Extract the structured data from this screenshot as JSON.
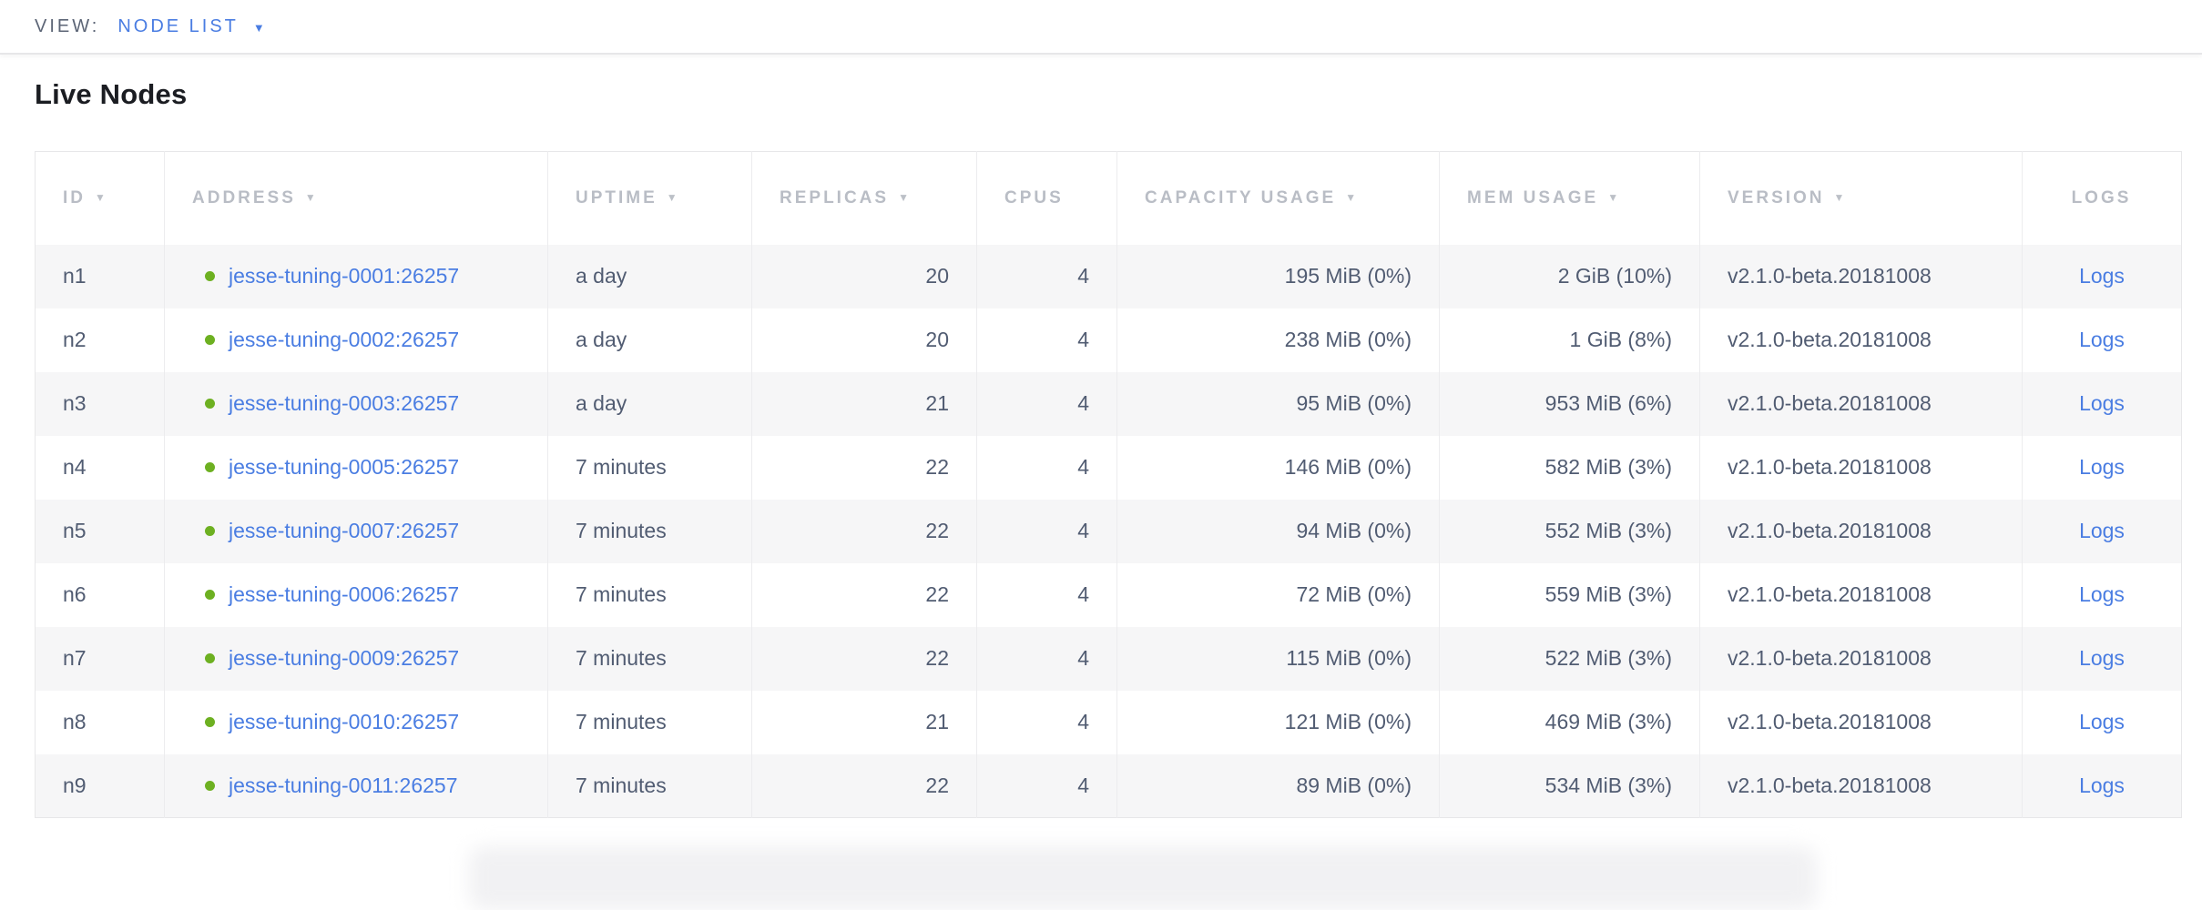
{
  "view_bar": {
    "label": "VIEW:",
    "selected_view": "NODE LIST"
  },
  "page": {
    "title": "Live Nodes"
  },
  "icons": {
    "dropdown_caret": "▼",
    "sort_arrow": "▼"
  },
  "colors": {
    "link_blue": "#4a7de2",
    "node_live_green": "#6db021",
    "header_gray": "#b9bdc5",
    "row_stripe": "#f6f6f7"
  },
  "table": {
    "columns": [
      {
        "key": "id",
        "label": "ID",
        "sortable": true,
        "data_align": "left"
      },
      {
        "key": "address",
        "label": "ADDRESS",
        "sortable": true,
        "data_align": "addr"
      },
      {
        "key": "uptime",
        "label": "UPTIME",
        "sortable": true,
        "data_align": "left"
      },
      {
        "key": "replicas",
        "label": "REPLICAS",
        "sortable": true,
        "data_align": "right"
      },
      {
        "key": "cpus",
        "label": "CPUS",
        "sortable": false,
        "data_align": "right"
      },
      {
        "key": "capacity",
        "label": "CAPACITY USAGE",
        "sortable": true,
        "data_align": "right"
      },
      {
        "key": "mem",
        "label": "MEM USAGE",
        "sortable": true,
        "data_align": "right"
      },
      {
        "key": "version",
        "label": "VERSION",
        "sortable": true,
        "data_align": "left"
      },
      {
        "key": "logs",
        "label": "LOGS",
        "sortable": false,
        "data_align": "center",
        "header_align": "center"
      }
    ],
    "rows": [
      {
        "id": "n1",
        "address": "jesse-tuning-0001:26257",
        "uptime": "a day",
        "replicas": "20",
        "cpus": "4",
        "capacity": "195 MiB (0%)",
        "mem": "2 GiB (10%)",
        "version": "v2.1.0-beta.20181008",
        "logs": "Logs"
      },
      {
        "id": "n2",
        "address": "jesse-tuning-0002:26257",
        "uptime": "a day",
        "replicas": "20",
        "cpus": "4",
        "capacity": "238 MiB (0%)",
        "mem": "1 GiB (8%)",
        "version": "v2.1.0-beta.20181008",
        "logs": "Logs"
      },
      {
        "id": "n3",
        "address": "jesse-tuning-0003:26257",
        "uptime": "a day",
        "replicas": "21",
        "cpus": "4",
        "capacity": "95 MiB (0%)",
        "mem": "953 MiB (6%)",
        "version": "v2.1.0-beta.20181008",
        "logs": "Logs"
      },
      {
        "id": "n4",
        "address": "jesse-tuning-0005:26257",
        "uptime": "7 minutes",
        "replicas": "22",
        "cpus": "4",
        "capacity": "146 MiB (0%)",
        "mem": "582 MiB (3%)",
        "version": "v2.1.0-beta.20181008",
        "logs": "Logs"
      },
      {
        "id": "n5",
        "address": "jesse-tuning-0007:26257",
        "uptime": "7 minutes",
        "replicas": "22",
        "cpus": "4",
        "capacity": "94 MiB (0%)",
        "mem": "552 MiB (3%)",
        "version": "v2.1.0-beta.20181008",
        "logs": "Logs"
      },
      {
        "id": "n6",
        "address": "jesse-tuning-0006:26257",
        "uptime": "7 minutes",
        "replicas": "22",
        "cpus": "4",
        "capacity": "72 MiB (0%)",
        "mem": "559 MiB (3%)",
        "version": "v2.1.0-beta.20181008",
        "logs": "Logs"
      },
      {
        "id": "n7",
        "address": "jesse-tuning-0009:26257",
        "uptime": "7 minutes",
        "replicas": "22",
        "cpus": "4",
        "capacity": "115 MiB (0%)",
        "mem": "522 MiB (3%)",
        "version": "v2.1.0-beta.20181008",
        "logs": "Logs"
      },
      {
        "id": "n8",
        "address": "jesse-tuning-0010:26257",
        "uptime": "7 minutes",
        "replicas": "21",
        "cpus": "4",
        "capacity": "121 MiB (0%)",
        "mem": "469 MiB (3%)",
        "version": "v2.1.0-beta.20181008",
        "logs": "Logs"
      },
      {
        "id": "n9",
        "address": "jesse-tuning-0011:26257",
        "uptime": "7 minutes",
        "replicas": "22",
        "cpus": "4",
        "capacity": "89 MiB (0%)",
        "mem": "534 MiB (3%)",
        "version": "v2.1.0-beta.20181008",
        "logs": "Logs"
      }
    ]
  }
}
